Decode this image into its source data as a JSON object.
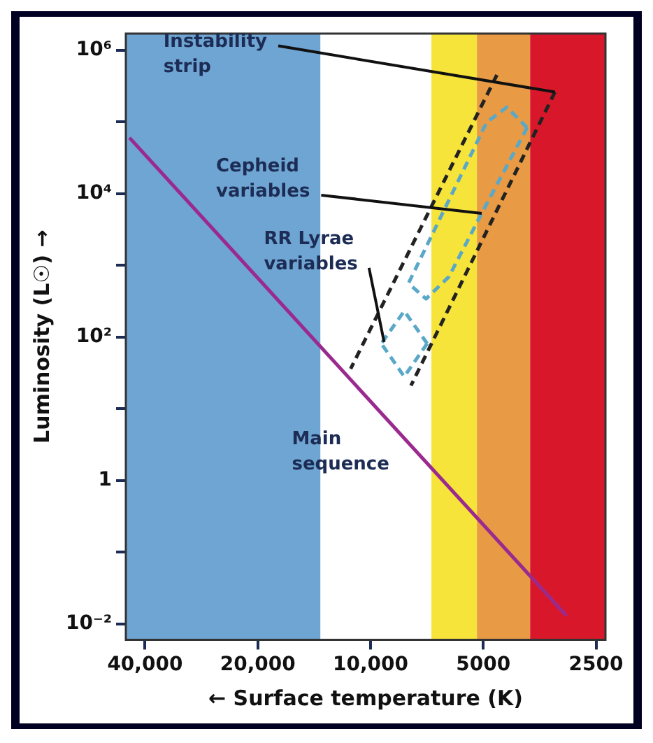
{
  "chart_data": {
    "type": "line",
    "xlabel": "← Surface temperature (K)",
    "ylabel": "Luminosity (L☉) →",
    "xlim": [
      45000,
      2360
    ],
    "ylim": [
      0.006,
      1700000
    ],
    "log": "xy",
    "grid": false,
    "legend": false,
    "marker": "none",
    "xticks": [
      {
        "value": 40000,
        "label": "40,000"
      },
      {
        "value": 20000,
        "label": "20,000"
      },
      {
        "value": 10000,
        "label": "10,000"
      },
      5000,
      2500
    ],
    "yticks": [
      {
        "value": 0.01,
        "label": "10⁻²"
      },
      {
        "value": 0.1,
        "label": null
      },
      1,
      {
        "value": 10,
        "label": null
      },
      {
        "value": 100,
        "label": "10²"
      },
      {
        "value": 1000,
        "label": null
      },
      {
        "value": 10000,
        "label": "10⁴"
      },
      {
        "value": 100000,
        "label": null
      },
      {
        "value": 1000000,
        "label": "10⁶"
      }
    ],
    "bands": [
      {
        "axis": "x",
        "from": 45000,
        "to": 13600,
        "color": "#6fa5d2"
      },
      {
        "axis": "x",
        "from": 13600,
        "to": 6880,
        "color": "#ffffff"
      },
      {
        "axis": "x",
        "from": 6880,
        "to": 5200,
        "color": "#f7e43a"
      },
      {
        "axis": "x",
        "from": 5200,
        "to": 3750,
        "color": "#e89a45"
      },
      {
        "axis": "x",
        "from": 3750,
        "to": 2360,
        "color": "#d8182a"
      }
    ],
    "series": [
      {
        "color": "#9b2a8f",
        "line_style": "solid",
        "x": [
          44000,
          3000
        ],
        "values": [
          60000,
          0.013
        ]
      },
      {
        "color": "#222222",
        "line_style": "dashed",
        "x": [
          4600,
          11300
        ],
        "values": [
          450000,
          36
        ]
      },
      {
        "color": "#222222",
        "line_style": "dashed",
        "x": [
          3220,
          7800
        ],
        "values": [
          260000,
          21
        ]
      },
      {
        "color": "#5aa8c8",
        "line_style": "dashed",
        "x": [
          3820,
          4330,
          4900,
          7920
        ],
        "values": [
          83000,
          160000,
          98000,
          560
        ]
      },
      {
        "color": "#5aa8c8",
        "line_style": "dashed",
        "x": [
          3820,
          5050,
          6180,
          7110,
          7920
        ],
        "values": [
          83000,
          5300,
          690,
          340,
          560
        ]
      },
      {
        "color": "#5aa8c8",
        "line_style": "dashed",
        "x": [
          7060,
          8130,
          9360
        ],
        "values": [
          81,
          230,
          81
        ]
      },
      {
        "color": "#5aa8c8",
        "line_style": "dashed",
        "x": [
          7060,
          8130,
          9360
        ],
        "values": [
          81,
          28,
          81
        ]
      }
    ],
    "annotations": [
      {
        "text": "Instability strip",
        "x": 3220,
        "y": 260000
      },
      {
        "text": "Cepheid variables",
        "x": 5050,
        "y": 5300
      },
      {
        "text": "RR Lyrae variables",
        "x": 9200,
        "y": 85
      },
      {
        "text": "Main sequence",
        "x": 8610,
        "y": 5.4
      }
    ]
  }
}
